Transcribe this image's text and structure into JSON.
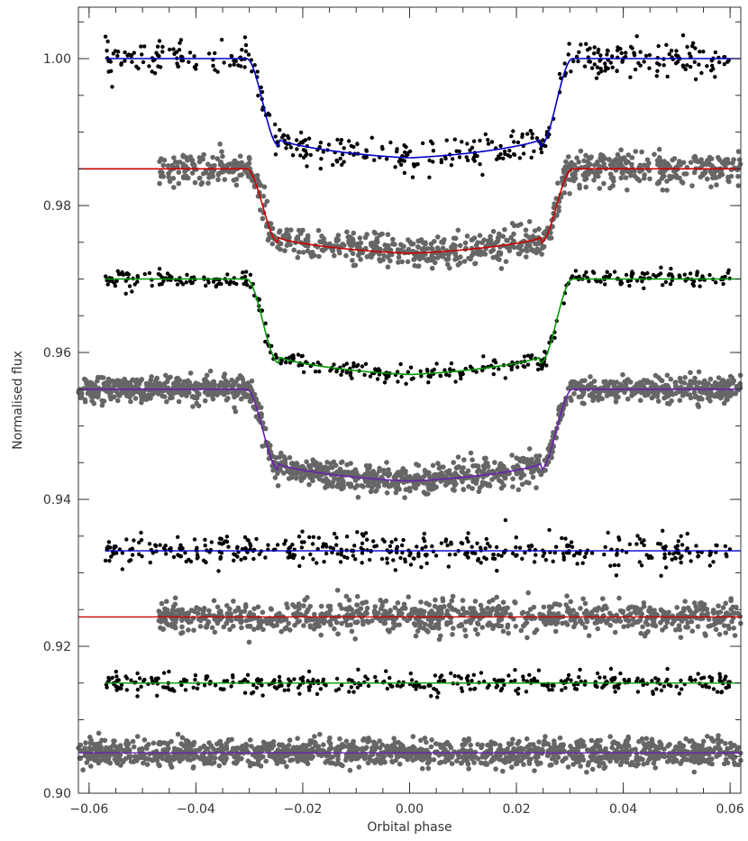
{
  "chart_data": {
    "type": "scatter",
    "xlabel": "Orbital phase",
    "ylabel": "Normalised flux",
    "xlim": [
      -0.062,
      0.062
    ],
    "ylim": [
      0.9,
      1.007
    ],
    "x_ticks": [
      -0.06,
      -0.04,
      -0.02,
      0.0,
      0.02,
      0.04,
      0.06
    ],
    "x_tick_labels": [
      "−0.06",
      "−0.04",
      "−0.02",
      "0.00",
      "0.02",
      "0.04",
      "0.06"
    ],
    "y_ticks": [
      0.9,
      0.92,
      0.94,
      0.96,
      0.98,
      1.0
    ],
    "y_tick_labels": [
      "0.90",
      "0.92",
      "0.94",
      "0.96",
      "0.98",
      "1.00"
    ],
    "grid": false,
    "series": [
      {
        "kind": "transit",
        "baseline": 1.0,
        "depth": 0.0135,
        "point_color": "#000000",
        "line_color": "#0000cc",
        "x_range": [
          -0.057,
          0.06
        ],
        "scatter": 0.0011,
        "n": 420,
        "point_size": 2.2
      },
      {
        "kind": "transit",
        "baseline": 0.985,
        "depth": 0.0115,
        "point_color": "#666666",
        "line_color": "#cc0000",
        "x_range": [
          -0.047,
          0.062
        ],
        "scatter": 0.0011,
        "n": 900,
        "point_size": 2.8
      },
      {
        "kind": "transit",
        "baseline": 0.97,
        "depth": 0.013,
        "point_color": "#000000",
        "line_color": "#009900",
        "x_range": [
          -0.057,
          0.06
        ],
        "scatter": 0.0006,
        "n": 380,
        "point_size": 2.2
      },
      {
        "kind": "transit",
        "baseline": 0.955,
        "depth": 0.0125,
        "point_color": "#666666",
        "line_color": "#6a1fb0",
        "x_range": [
          -0.062,
          0.062
        ],
        "scatter": 0.0009,
        "n": 1400,
        "point_size": 2.8
      },
      {
        "kind": "residual",
        "baseline": 0.933,
        "point_color": "#000000",
        "line_color": "#0000cc",
        "x_range": [
          -0.057,
          0.06
        ],
        "scatter": 0.0011,
        "n": 420,
        "point_size": 2.2
      },
      {
        "kind": "residual",
        "baseline": 0.924,
        "point_color": "#666666",
        "line_color": "#cc0000",
        "x_range": [
          -0.047,
          0.062
        ],
        "scatter": 0.0011,
        "n": 900,
        "point_size": 2.8
      },
      {
        "kind": "residual",
        "baseline": 0.915,
        "point_color": "#000000",
        "line_color": "#009900",
        "x_range": [
          -0.057,
          0.06
        ],
        "scatter": 0.0007,
        "n": 380,
        "point_size": 2.2
      },
      {
        "kind": "residual",
        "baseline": 0.9055,
        "point_color": "#666666",
        "line_color": "#6a1fb0",
        "x_range": [
          -0.062,
          0.062
        ],
        "scatter": 0.0009,
        "n": 1400,
        "point_size": 2.8
      }
    ],
    "transit_shape": {
      "t1": 0.0305,
      "t2": 0.0245,
      "limb_darkening": 0.12
    }
  }
}
